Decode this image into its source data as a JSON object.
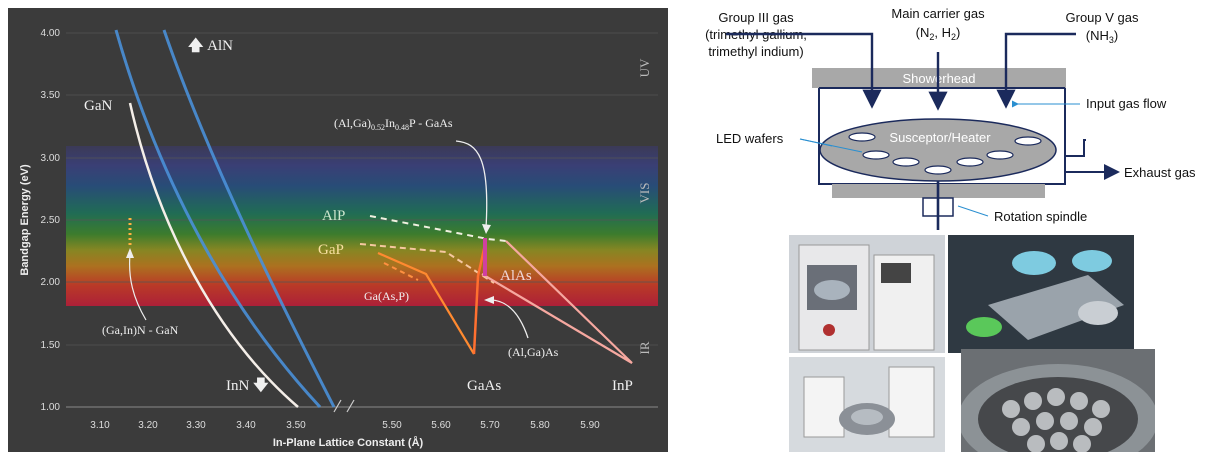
{
  "chart": {
    "ylabel": "Bandgap Energy (eV)",
    "xlabel": "In-Plane Lattice Constant (Å)",
    "yticks": [
      "4.00",
      "3.50",
      "3.00",
      "2.50",
      "2.00",
      "1.50",
      "1.00"
    ],
    "xticks": [
      "3.10",
      "3.20",
      "3.30",
      "3.40",
      "3.50",
      "5.50",
      "5.60",
      "5.70",
      "5.80",
      "5.90"
    ],
    "regions": [
      "UV",
      "VIS",
      "IR"
    ],
    "labels": {
      "aln": "AlN",
      "gan": "GaN",
      "inn": "InN",
      "gainn": "(Ga,In)N - GaN",
      "algainp_pre": "(Al,Ga)",
      "algainp_sub1": "0.52",
      "algainp_mid": "In",
      "algainp_sub2": "0.48",
      "algainp_post": "P - GaAs",
      "alp": "AlP",
      "gap": "GaP",
      "alas": "AlAs",
      "gaasp": "Ga(As,P)",
      "algaas": "(Al,Ga)As",
      "gaas": "GaAs",
      "inp": "InP"
    },
    "colors": {
      "uv": "#3a3a55",
      "ir": "#c8203a",
      "nitride": "#ffffff",
      "arsenide": "#f07840"
    }
  },
  "reactor": {
    "group3_line1": "Group III gas",
    "group3_line2": "(trimethyl gallium,",
    "group3_line3": "trimethyl indium)",
    "carrier_line1": "Main carrier gas",
    "carrier_line2_pre": "(N",
    "carrier_sub1": "2",
    "carrier_line2_mid": ", H",
    "carrier_sub2": "2",
    "carrier_line2_post": ")",
    "group5_line1": "Group V gas",
    "group5_line2_pre": "(NH",
    "group5_sub": "3",
    "group5_line2_post": ")",
    "showerhead": "Showerhead",
    "input_flow": "Input gas flow",
    "led_wafers": "LED wafers",
    "susceptor": "Susceptor/Heater",
    "exhaust": "Exhaust gas",
    "rotation": "Rotation spindle",
    "colors": {
      "arrow": "#1b2a5c",
      "label_arrow": "#2a8fd0",
      "plate": "#a8a8a8"
    }
  }
}
